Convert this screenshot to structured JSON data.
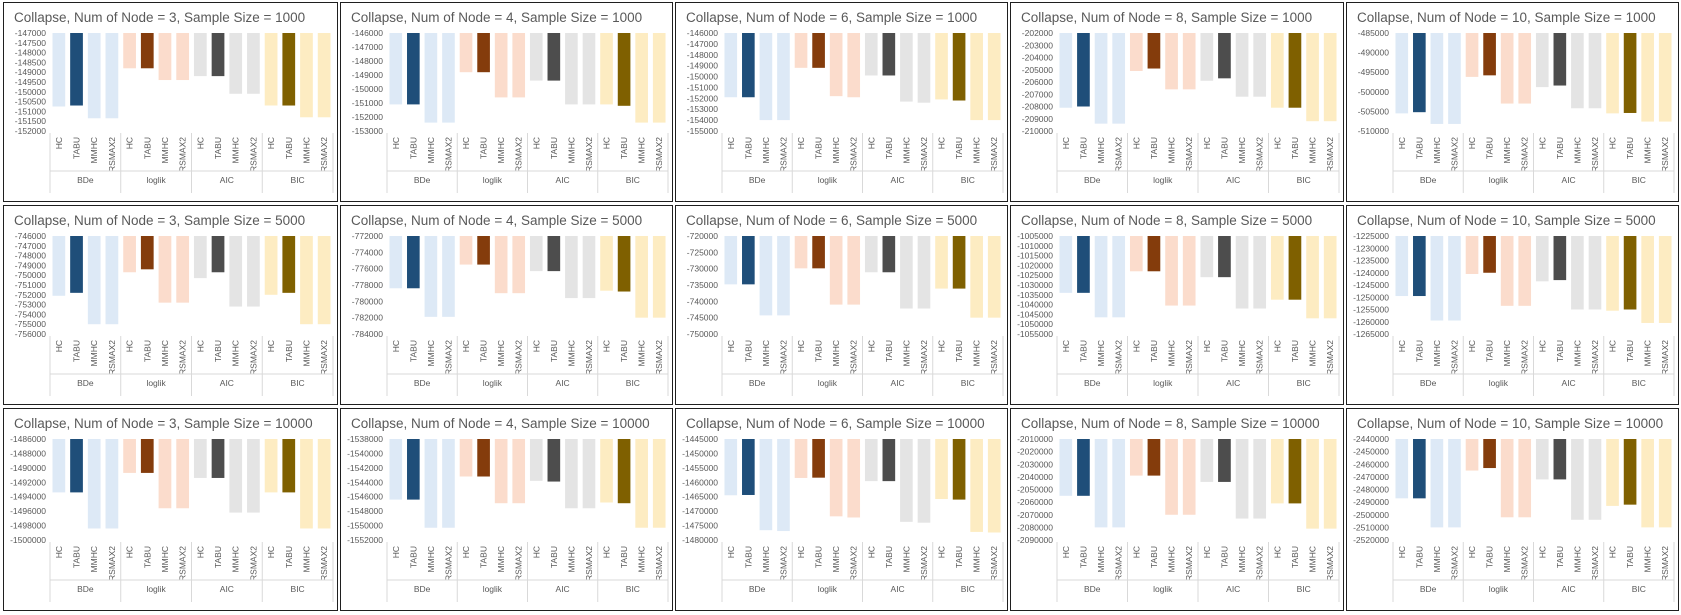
{
  "palette": {
    "BDe": {
      "light": "#dde9f6",
      "dark": "#1f4e79"
    },
    "loglik": {
      "light": "#fbdccc",
      "dark": "#843c0c"
    },
    "AIC": {
      "light": "#e4e4e4",
      "dark": "#4d4d4d"
    },
    "BIC": {
      "light": "#fdecc2",
      "dark": "#7f6000"
    }
  },
  "chart_data": [
    {
      "title": "Collapse, Num of Node = 3, Sample Size = 1000",
      "type": "bar",
      "groups": [
        "BDe",
        "loglik",
        "AIC",
        "BIC"
      ],
      "algorithms": [
        "HC",
        "TABU",
        "MMHC",
        "RSMAX2"
      ],
      "yticks": [
        -147000,
        -147500,
        -148000,
        -148500,
        -149000,
        -149500,
        -150000,
        -150500,
        -151000,
        -151500,
        -152000
      ],
      "ylim": [
        -147000,
        -152000
      ],
      "highlight": "TABU",
      "values": [
        [
          -150750,
          -150700,
          -151350,
          -151350
        ],
        [
          -148800,
          -148800,
          -149400,
          -149400
        ],
        [
          -149200,
          -149200,
          -150100,
          -150100
        ],
        [
          -150700,
          -150700,
          -151300,
          -151300
        ]
      ]
    },
    {
      "title": "Collapse, Num of Node = 4, Sample Size = 1000",
      "type": "bar",
      "groups": [
        "BDe",
        "loglik",
        "AIC",
        "BIC"
      ],
      "algorithms": [
        "HC",
        "TABU",
        "MMHC",
        "RSMAX2"
      ],
      "yticks": [
        -146000,
        -147000,
        -148000,
        -149000,
        -150000,
        -151000,
        -152000,
        -153000
      ],
      "ylim": [
        -146000,
        -153000
      ],
      "highlight": "TABU",
      "values": [
        [
          -151100,
          -151100,
          -152400,
          -152400
        ],
        [
          -148800,
          -148800,
          -150600,
          -150600
        ],
        [
          -149400,
          -149400,
          -151100,
          -151100
        ],
        [
          -151100,
          -151200,
          -152400,
          -152400
        ]
      ]
    },
    {
      "title": "Collapse, Num of Node = 6, Sample Size = 1000",
      "type": "bar",
      "groups": [
        "BDe",
        "loglik",
        "AIC",
        "BIC"
      ],
      "algorithms": [
        "HC",
        "TABU",
        "MMHC",
        "RSMAX2"
      ],
      "yticks": [
        -146000,
        -147000,
        -148000,
        -149000,
        -150000,
        -151000,
        -152000,
        -153000,
        -154000,
        -155000
      ],
      "ylim": [
        -146000,
        -155000
      ],
      "highlight": "TABU",
      "values": [
        [
          -151900,
          -151900,
          -154000,
          -154000
        ],
        [
          -149200,
          -149200,
          -151800,
          -151900
        ],
        [
          -149900,
          -149900,
          -152300,
          -152400
        ],
        [
          -152100,
          -152200,
          -154000,
          -154000
        ]
      ]
    },
    {
      "title": "Collapse, Num of Node = 8, Sample Size = 1000",
      "type": "bar",
      "groups": [
        "BDe",
        "loglik",
        "AIC",
        "BIC"
      ],
      "algorithms": [
        "HC",
        "TABU",
        "MMHC",
        "RSMAX2"
      ],
      "yticks": [
        -202000,
        -203000,
        -204000,
        -205000,
        -206000,
        -207000,
        -208000,
        -209000,
        -210000
      ],
      "ylim": [
        -202000,
        -210000
      ],
      "highlight": "TABU",
      "values": [
        [
          -208100,
          -208000,
          -209400,
          -209400
        ],
        [
          -205100,
          -204900,
          -206600,
          -206600
        ],
        [
          -205900,
          -205700,
          -207200,
          -207200
        ],
        [
          -208100,
          -208100,
          -209200,
          -209200
        ]
      ]
    },
    {
      "title": "Collapse, Num of Node = 10, Sample Size = 1000",
      "type": "bar",
      "groups": [
        "BDe",
        "loglik",
        "AIC",
        "BIC"
      ],
      "algorithms": [
        "HC",
        "TABU",
        "MMHC",
        "RSMAX2"
      ],
      "yticks": [
        -485000,
        -490000,
        -495000,
        -500000,
        -505000,
        -510000
      ],
      "ylim": [
        -485000,
        -510000
      ],
      "highlight": "TABU",
      "values": [
        [
          -505500,
          -505200,
          -508200,
          -508200
        ],
        [
          -496200,
          -495800,
          -503000,
          -503000
        ],
        [
          -498800,
          -498400,
          -504200,
          -504200
        ],
        [
          -505500,
          -505400,
          -507600,
          -507600
        ]
      ]
    },
    {
      "title": "Collapse, Num of Node = 3, Sample Size = 5000",
      "type": "bar",
      "groups": [
        "BDe",
        "loglik",
        "AIC",
        "BIC"
      ],
      "algorithms": [
        "HC",
        "TABU",
        "MMHC",
        "RSMAX2"
      ],
      "yticks": [
        -746000,
        -747000,
        -748000,
        -749000,
        -750000,
        -751000,
        -752000,
        -753000,
        -754000,
        -755000,
        -756000
      ],
      "ylim": [
        -746000,
        -756000
      ],
      "highlight": "TABU",
      "values": [
        [
          -752100,
          -751800,
          -755000,
          -755000
        ],
        [
          -749700,
          -749400,
          -752800,
          -752800
        ],
        [
          -750300,
          -749700,
          -753200,
          -753200
        ],
        [
          -752000,
          -751800,
          -755000,
          -755000
        ]
      ]
    },
    {
      "title": "Collapse, Num of Node = 4, Sample Size = 5000",
      "type": "bar",
      "groups": [
        "BDe",
        "loglik",
        "AIC",
        "BIC"
      ],
      "algorithms": [
        "HC",
        "TABU",
        "MMHC",
        "RSMAX2"
      ],
      "yticks": [
        -772000,
        -774000,
        -776000,
        -778000,
        -780000,
        -782000,
        -784000
      ],
      "ylim": [
        -772000,
        -784000
      ],
      "highlight": "TABU",
      "values": [
        [
          -778400,
          -778400,
          -781900,
          -781900
        ],
        [
          -775500,
          -775500,
          -779000,
          -779000
        ],
        [
          -776300,
          -776300,
          -779600,
          -779600
        ],
        [
          -778700,
          -778800,
          -782000,
          -782000
        ]
      ]
    },
    {
      "title": "Collapse, Num of Node = 6, Sample Size = 5000",
      "type": "bar",
      "groups": [
        "BDe",
        "loglik",
        "AIC",
        "BIC"
      ],
      "algorithms": [
        "HC",
        "TABU",
        "MMHC",
        "RSMAX2"
      ],
      "yticks": [
        -720000,
        -725000,
        -730000,
        -735000,
        -740000,
        -745000,
        -750000
      ],
      "ylim": [
        -720000,
        -750000
      ],
      "highlight": "TABU",
      "values": [
        [
          -734800,
          -734800,
          -744300,
          -744300
        ],
        [
          -729900,
          -729900,
          -741000,
          -741000
        ],
        [
          -731100,
          -731100,
          -742200,
          -742200
        ],
        [
          -736100,
          -736100,
          -745000,
          -745000
        ]
      ]
    },
    {
      "title": "Collapse, Num of Node = 8, Sample Size = 5000",
      "type": "bar",
      "groups": [
        "BDe",
        "loglik",
        "AIC",
        "BIC"
      ],
      "algorithms": [
        "HC",
        "TABU",
        "MMHC",
        "RSMAX2"
      ],
      "yticks": [
        -1005000,
        -1010000,
        -1015000,
        -1020000,
        -1025000,
        -1030000,
        -1035000,
        -1040000,
        -1045000,
        -1050000,
        -1055000
      ],
      "ylim": [
        -1005000,
        -1055000
      ],
      "highlight": "TABU",
      "values": [
        [
          -1034000,
          -1034000,
          -1046500,
          -1046500
        ],
        [
          -1023000,
          -1023000,
          -1040500,
          -1040500
        ],
        [
          -1026000,
          -1026000,
          -1042000,
          -1042000
        ],
        [
          -1037500,
          -1037500,
          -1047000,
          -1047000
        ]
      ]
    },
    {
      "title": "Collapse, Num of Node = 10, Sample Size = 5000",
      "type": "bar",
      "groups": [
        "BDe",
        "loglik",
        "AIC",
        "BIC"
      ],
      "algorithms": [
        "HC",
        "TABU",
        "MMHC",
        "RSMAX2"
      ],
      "yticks": [
        -1225000,
        -1230000,
        -1235000,
        -1240000,
        -1245000,
        -1250000,
        -1255000,
        -1260000,
        -1265000
      ],
      "ylim": [
        -1225000,
        -1265000
      ],
      "highlight": "TABU",
      "values": [
        [
          -1249500,
          -1249500,
          -1259500,
          -1259500
        ],
        [
          -1240500,
          -1240000,
          -1253500,
          -1253500
        ],
        [
          -1243500,
          -1243000,
          -1255000,
          -1255000
        ],
        [
          -1255500,
          -1255000,
          -1260500,
          -1260500
        ]
      ]
    },
    {
      "title": "Collapse, Num of Node = 3, Sample Size = 10000",
      "type": "bar",
      "groups": [
        "BDe",
        "loglik",
        "AIC",
        "BIC"
      ],
      "algorithms": [
        "HC",
        "TABU",
        "MMHC",
        "RSMAX2"
      ],
      "yticks": [
        -1486000,
        -1488000,
        -1490000,
        -1492000,
        -1494000,
        -1496000,
        -1498000,
        -1500000
      ],
      "ylim": [
        -1486000,
        -1500000
      ],
      "highlight": "TABU",
      "values": [
        [
          -1493400,
          -1493400,
          -1498400,
          -1498400
        ],
        [
          -1490700,
          -1490700,
          -1495600,
          -1495600
        ],
        [
          -1491400,
          -1491400,
          -1496200,
          -1496200
        ],
        [
          -1493400,
          -1493400,
          -1498400,
          -1498400
        ]
      ]
    },
    {
      "title": "Collapse, Num of Node = 4, Sample Size = 10000",
      "type": "bar",
      "groups": [
        "BDe",
        "loglik",
        "AIC",
        "BIC"
      ],
      "algorithms": [
        "HC",
        "TABU",
        "MMHC",
        "RSMAX2"
      ],
      "yticks": [
        -1538000,
        -1540000,
        -1542000,
        -1544000,
        -1546000,
        -1548000,
        -1550000,
        -1552000
      ],
      "ylim": [
        -1538000,
        -1552000
      ],
      "highlight": "TABU",
      "values": [
        [
          -1546400,
          -1546400,
          -1550300,
          -1550300
        ],
        [
          -1543200,
          -1543200,
          -1546900,
          -1546900
        ],
        [
          -1543800,
          -1543900,
          -1547600,
          -1547600
        ],
        [
          -1546800,
          -1546900,
          -1550300,
          -1550300
        ]
      ]
    },
    {
      "title": "Collapse, Num of Node = 6, Sample Size = 10000",
      "type": "bar",
      "groups": [
        "BDe",
        "loglik",
        "AIC",
        "BIC"
      ],
      "algorithms": [
        "HC",
        "TABU",
        "MMHC",
        "RSMAX2"
      ],
      "yticks": [
        -1445000,
        -1450000,
        -1455000,
        -1460000,
        -1465000,
        -1470000,
        -1475000,
        -1480000
      ],
      "ylim": [
        -1445000,
        -1480000
      ],
      "highlight": "TABU",
      "values": [
        [
          -1464500,
          -1464400,
          -1476600,
          -1476900
        ],
        [
          -1458500,
          -1458400,
          -1471800,
          -1472200
        ],
        [
          -1459600,
          -1459600,
          -1473700,
          -1474000
        ],
        [
          -1465800,
          -1466000,
          -1477200,
          -1477400
        ]
      ]
    },
    {
      "title": "Collapse, Num of Node = 8, Sample Size = 10000",
      "type": "bar",
      "groups": [
        "BDe",
        "loglik",
        "AIC",
        "BIC"
      ],
      "algorithms": [
        "HC",
        "TABU",
        "MMHC",
        "RSMAX2"
      ],
      "yticks": [
        -2010000,
        -2020000,
        -2030000,
        -2040000,
        -2050000,
        -2060000,
        -2070000,
        -2080000,
        -2090000
      ],
      "ylim": [
        -2010000,
        -2090000
      ],
      "highlight": "TABU",
      "values": [
        [
          -2055000,
          -2055000,
          -2080000,
          -2080000
        ],
        [
          -2039000,
          -2039000,
          -2070000,
          -2070000
        ],
        [
          -2044000,
          -2044000,
          -2073000,
          -2073000
        ],
        [
          -2061000,
          -2061000,
          -2081000,
          -2081000
        ]
      ]
    },
    {
      "title": "Collapse, Num of Node = 10, Sample Size = 10000",
      "type": "bar",
      "groups": [
        "BDe",
        "loglik",
        "AIC",
        "BIC"
      ],
      "algorithms": [
        "HC",
        "TABU",
        "MMHC",
        "RSMAX2"
      ],
      "yticks": [
        -2440000,
        -2450000,
        -2460000,
        -2470000,
        -2480000,
        -2490000,
        -2500000,
        -2510000,
        -2520000
      ],
      "ylim": [
        -2440000,
        -2520000
      ],
      "highlight": "TABU",
      "values": [
        [
          -2487000,
          -2487000,
          -2510000,
          -2510000
        ],
        [
          -2465000,
          -2463000,
          -2502000,
          -2502000
        ],
        [
          -2472000,
          -2472000,
          -2504000,
          -2504000
        ],
        [
          -2493000,
          -2492000,
          -2510000,
          -2510000
        ]
      ]
    }
  ]
}
